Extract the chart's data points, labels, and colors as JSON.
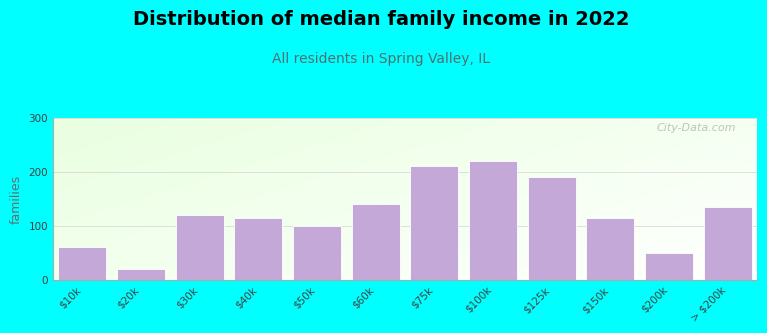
{
  "title": "Distribution of median family income in 2022",
  "subtitle": "All residents in Spring Valley, IL",
  "ylabel": "families",
  "background_color": "#00FFFF",
  "bar_color": "#C4A8D8",
  "categories": [
    "$10k",
    "$20k",
    "$30k",
    "$40k",
    "$50k",
    "$60k",
    "$75k",
    "$100k",
    "$125k",
    "$150k",
    "$200k",
    "> $200k"
  ],
  "values": [
    60,
    20,
    120,
    115,
    100,
    140,
    210,
    220,
    190,
    115,
    50,
    135
  ],
  "ylim": [
    0,
    300
  ],
  "yticks": [
    0,
    100,
    200,
    300
  ],
  "watermark": "City-Data.com",
  "title_fontsize": 14,
  "subtitle_fontsize": 10,
  "ylabel_fontsize": 9,
  "tick_fontsize": 7.5,
  "subtitle_color": "#507070",
  "ylabel_color": "#607070"
}
